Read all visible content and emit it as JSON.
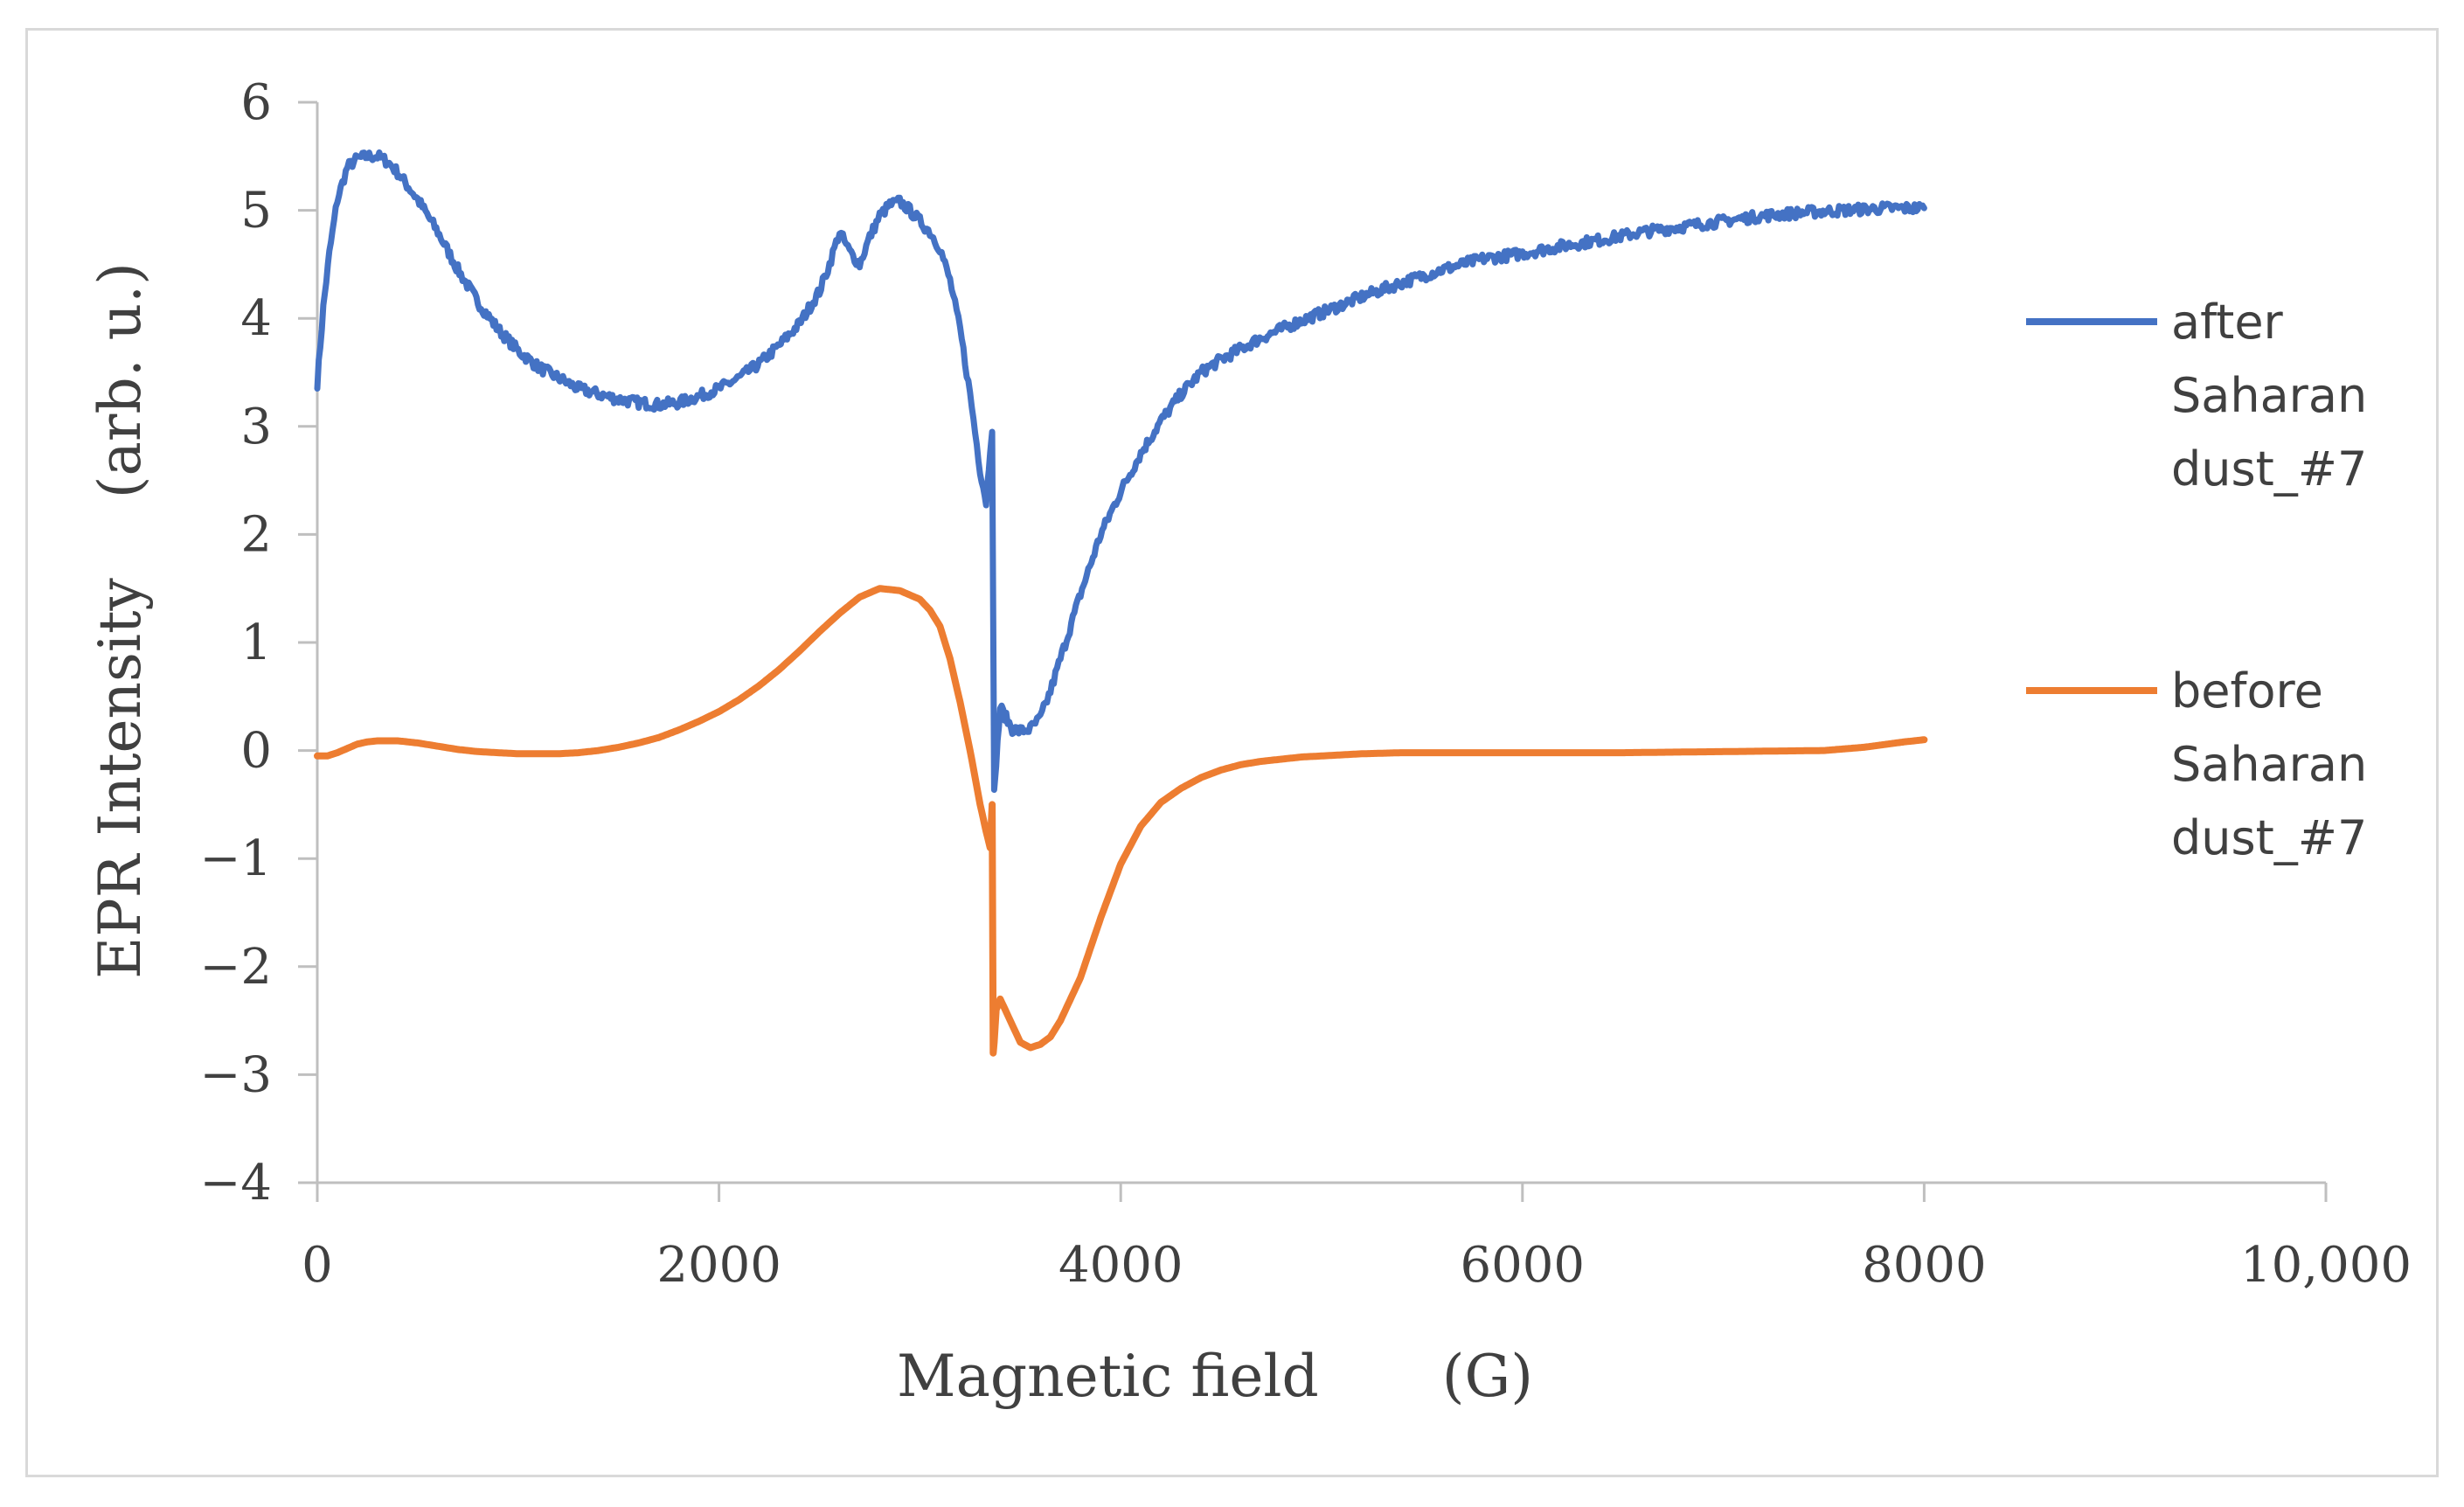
{
  "chart_data": {
    "type": "line",
    "xlabel": "Magnetic field (G)",
    "xlabel_parts": [
      "Magnetic field",
      "(G)"
    ],
    "ylabel": "EPR Intensity (arb. u.)",
    "ylabel_parts": [
      "EPR Intensity",
      "(arb. u.)"
    ],
    "xlim": [
      0,
      10000
    ],
    "ylim": [
      -4,
      6
    ],
    "xticks": [
      0,
      2000,
      4000,
      6000,
      8000,
      10000
    ],
    "xtick_labels": [
      "0",
      "2000",
      "4000",
      "6000",
      "8000",
      "10,000"
    ],
    "yticks": [
      6,
      5,
      4,
      3,
      2,
      1,
      0,
      -1,
      -2,
      -3,
      -4
    ],
    "ytick_labels": [
      "6",
      "5",
      "4",
      "3",
      "2",
      "1",
      "0",
      "−1",
      "−2",
      "−3",
      "−4"
    ],
    "grid": false,
    "legend_position": "right",
    "series": [
      {
        "name": "after Saharan dust_#7",
        "legend_lines": [
          "after",
          "Saharan",
          "dust_#7"
        ],
        "color": "#4472C4",
        "x": [
          0,
          30,
          60,
          100,
          150,
          200,
          250,
          300,
          350,
          400,
          500,
          600,
          700,
          800,
          900,
          1000,
          1100,
          1200,
          1300,
          1400,
          1500,
          1600,
          1700,
          1800,
          1900,
          2000,
          2100,
          2200,
          2300,
          2400,
          2500,
          2550,
          2600,
          2650,
          2700,
          2750,
          2800,
          2850,
          2900,
          2950,
          3000,
          3050,
          3100,
          3150,
          3200,
          3250,
          3300,
          3330,
          3350,
          3360,
          3365,
          3370,
          3380,
          3400,
          3430,
          3460,
          3500,
          3550,
          3600,
          3650,
          3700,
          3800,
          3900,
          4000,
          4100,
          4200,
          4300,
          4400,
          4500,
          4600,
          4700,
          4800,
          4900,
          5000,
          5200,
          5400,
          5600,
          5800,
          6000,
          6200,
          6400,
          6600,
          6800,
          7000,
          7200,
          7400,
          7600,
          7800,
          8000
        ],
        "y": [
          3.4,
          4.1,
          4.6,
          5.1,
          5.4,
          5.48,
          5.5,
          5.5,
          5.45,
          5.35,
          5.1,
          4.8,
          4.45,
          4.15,
          3.9,
          3.7,
          3.55,
          3.45,
          3.35,
          3.3,
          3.25,
          3.22,
          3.2,
          3.22,
          3.28,
          3.35,
          3.45,
          3.58,
          3.75,
          3.95,
          4.25,
          4.5,
          4.8,
          4.62,
          4.5,
          4.75,
          4.95,
          5.05,
          5.08,
          5.0,
          4.9,
          4.8,
          4.65,
          4.35,
          3.9,
          3.3,
          2.6,
          2.3,
          2.8,
          3.0,
          1.2,
          -0.4,
          -0.1,
          0.4,
          0.3,
          0.2,
          0.18,
          0.2,
          0.3,
          0.55,
          0.85,
          1.45,
          2.0,
          2.4,
          2.75,
          3.05,
          3.3,
          3.5,
          3.62,
          3.72,
          3.82,
          3.9,
          3.98,
          4.05,
          4.2,
          4.33,
          4.45,
          4.55,
          4.6,
          4.67,
          4.73,
          4.8,
          4.85,
          4.9,
          4.95,
          4.98,
          5.0,
          5.02,
          5.02
        ]
      },
      {
        "name": "before Saharan dust_#7",
        "legend_lines": [
          "before",
          "Saharan",
          "dust_#7"
        ],
        "color": "#ED7D31",
        "x": [
          0,
          50,
          100,
          150,
          200,
          250,
          300,
          350,
          400,
          500,
          600,
          700,
          800,
          900,
          1000,
          1100,
          1200,
          1300,
          1400,
          1500,
          1600,
          1700,
          1800,
          1900,
          2000,
          2100,
          2200,
          2300,
          2400,
          2500,
          2600,
          2700,
          2800,
          2900,
          3000,
          3050,
          3100,
          3150,
          3200,
          3250,
          3300,
          3330,
          3350,
          3360,
          3365,
          3370,
          3380,
          3400,
          3450,
          3500,
          3550,
          3600,
          3650,
          3700,
          3800,
          3900,
          4000,
          4100,
          4200,
          4300,
          4400,
          4500,
          4600,
          4700,
          4800,
          4900,
          5000,
          5200,
          5400,
          5600,
          5800,
          6000,
          6500,
          7000,
          7500,
          7700,
          7900,
          8000
        ],
        "y": [
          -0.05,
          -0.05,
          -0.02,
          0.02,
          0.06,
          0.08,
          0.09,
          0.09,
          0.09,
          0.07,
          0.04,
          0.01,
          -0.01,
          -0.02,
          -0.03,
          -0.03,
          -0.03,
          -0.02,
          0.0,
          0.03,
          0.07,
          0.12,
          0.19,
          0.27,
          0.36,
          0.47,
          0.6,
          0.75,
          0.92,
          1.1,
          1.27,
          1.42,
          1.5,
          1.48,
          1.4,
          1.3,
          1.15,
          0.85,
          0.45,
          0.0,
          -0.5,
          -0.75,
          -0.9,
          -0.5,
          -2.8,
          -2.7,
          -2.4,
          -2.3,
          -2.5,
          -2.7,
          -2.75,
          -2.72,
          -2.65,
          -2.5,
          -2.1,
          -1.55,
          -1.05,
          -0.7,
          -0.48,
          -0.35,
          -0.25,
          -0.18,
          -0.13,
          -0.1,
          -0.08,
          -0.06,
          -0.05,
          -0.03,
          -0.02,
          -0.02,
          -0.02,
          -0.02,
          -0.02,
          -0.01,
          0.0,
          0.03,
          0.08,
          0.1
        ]
      }
    ]
  }
}
